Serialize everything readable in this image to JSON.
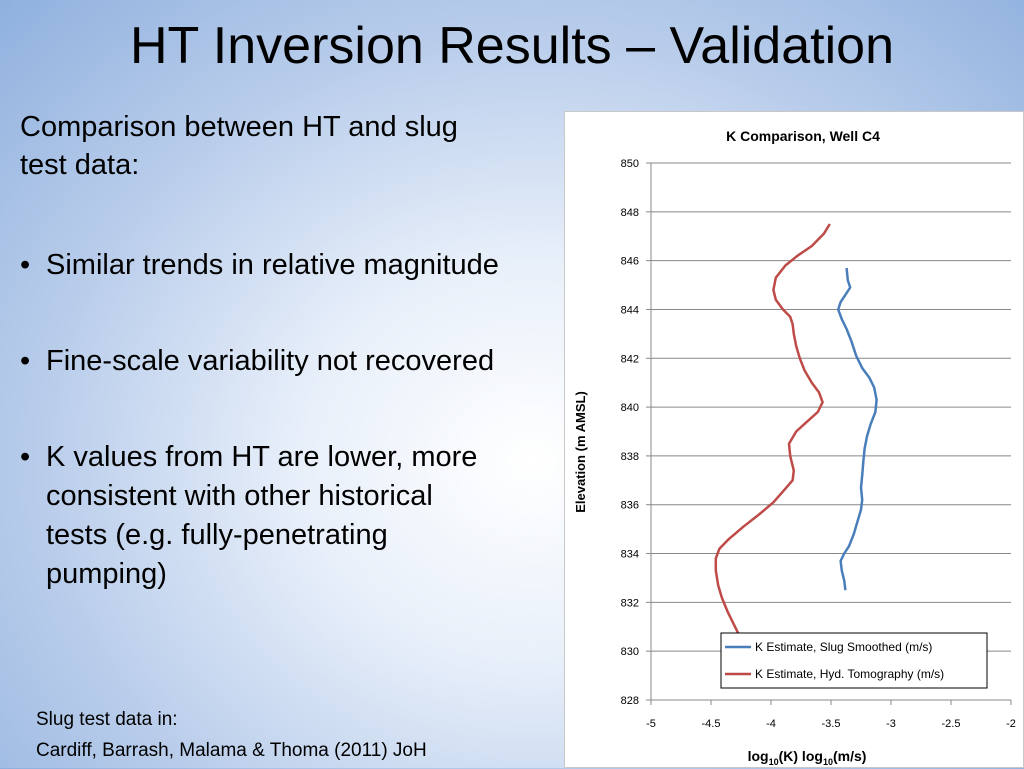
{
  "slide": {
    "title": "HT Inversion Results – Validation",
    "intro": "Comparison between HT and slug test data:",
    "bullets": [
      "Similar trends in relative magnitude",
      "Fine-scale variability not recovered",
      "K values from HT are lower, more consistent with other historical tests (e.g. fully-penetrating pumping)"
    ],
    "bullet_glyph": "•",
    "source_line1": "Slug test data in:",
    "source_line2": "Cardiff, Barrash, Malama & Thoma (2011) JoH"
  },
  "chart_data": {
    "type": "line",
    "title": "K Comparison, Well C4",
    "xlabel_main": "log",
    "xlabel_sub": "10",
    "xlabel_mid": "(K) log",
    "xlabel_sub2": "10",
    "xlabel_end": "(m/s)",
    "ylabel": "Elevation (m AMSL)",
    "xlim": [
      -5,
      -2
    ],
    "ylim": [
      828,
      850
    ],
    "xticks": [
      -5,
      -4.5,
      -4,
      -3.5,
      -3,
      -2.5,
      -2
    ],
    "xtick_labels": [
      "-5",
      "-4.5",
      "-4",
      "-3.5",
      "-3",
      "-2.5",
      "-2"
    ],
    "yticks": [
      828,
      830,
      832,
      834,
      836,
      838,
      840,
      842,
      844,
      846,
      848,
      850
    ],
    "ytick_labels": [
      "828",
      "830",
      "832",
      "834",
      "836",
      "838",
      "840",
      "842",
      "844",
      "846",
      "848",
      "850"
    ],
    "grid": true,
    "legend_position": "bottom-right",
    "series": [
      {
        "name": "K Estimate, Slug Smoothed (m/s)",
        "color": "#4a7ebb",
        "points": [
          [
            -3.37,
            845.7
          ],
          [
            -3.36,
            845.2
          ],
          [
            -3.34,
            844.9
          ],
          [
            -3.38,
            844.6
          ],
          [
            -3.42,
            844.3
          ],
          [
            -3.44,
            844.0
          ],
          [
            -3.41,
            843.6
          ],
          [
            -3.37,
            843.2
          ],
          [
            -3.33,
            842.7
          ],
          [
            -3.29,
            842.1
          ],
          [
            -3.24,
            841.6
          ],
          [
            -3.18,
            841.2
          ],
          [
            -3.14,
            840.8
          ],
          [
            -3.12,
            840.3
          ],
          [
            -3.13,
            839.8
          ],
          [
            -3.17,
            839.3
          ],
          [
            -3.2,
            838.8
          ],
          [
            -3.22,
            838.3
          ],
          [
            -3.23,
            837.8
          ],
          [
            -3.24,
            837.2
          ],
          [
            -3.25,
            836.7
          ],
          [
            -3.24,
            836.2
          ],
          [
            -3.25,
            835.8
          ],
          [
            -3.28,
            835.3
          ],
          [
            -3.31,
            834.8
          ],
          [
            -3.35,
            834.3
          ],
          [
            -3.39,
            834.0
          ],
          [
            -3.42,
            833.7
          ],
          [
            -3.41,
            833.3
          ],
          [
            -3.39,
            832.9
          ],
          [
            -3.38,
            832.5
          ]
        ]
      },
      {
        "name": "K Estimate, Hyd. Tomography (m/s)",
        "color": "#be4b48",
        "points": [
          [
            -3.51,
            847.5
          ],
          [
            -3.56,
            847.1
          ],
          [
            -3.66,
            846.6
          ],
          [
            -3.78,
            846.2
          ],
          [
            -3.88,
            845.8
          ],
          [
            -3.96,
            845.3
          ],
          [
            -3.98,
            844.8
          ],
          [
            -3.96,
            844.4
          ],
          [
            -3.9,
            844.0
          ],
          [
            -3.84,
            843.7
          ],
          [
            -3.82,
            843.4
          ],
          [
            -3.81,
            843.0
          ],
          [
            -3.79,
            842.5
          ],
          [
            -3.76,
            842.0
          ],
          [
            -3.72,
            841.5
          ],
          [
            -3.66,
            841.0
          ],
          [
            -3.6,
            840.6
          ],
          [
            -3.57,
            840.2
          ],
          [
            -3.61,
            839.8
          ],
          [
            -3.7,
            839.4
          ],
          [
            -3.79,
            839.0
          ],
          [
            -3.85,
            838.5
          ],
          [
            -3.84,
            838.0
          ],
          [
            -3.81,
            837.4
          ],
          [
            -3.82,
            837.0
          ],
          [
            -3.89,
            836.6
          ],
          [
            -3.98,
            836.1
          ],
          [
            -4.1,
            835.6
          ],
          [
            -4.23,
            835.1
          ],
          [
            -4.35,
            834.6
          ],
          [
            -4.43,
            834.2
          ],
          [
            -4.46,
            833.8
          ],
          [
            -4.46,
            833.3
          ],
          [
            -4.44,
            832.7
          ],
          [
            -4.41,
            832.2
          ],
          [
            -4.36,
            831.6
          ],
          [
            -4.31,
            831.1
          ],
          [
            -4.26,
            830.6
          ]
        ]
      }
    ]
  }
}
